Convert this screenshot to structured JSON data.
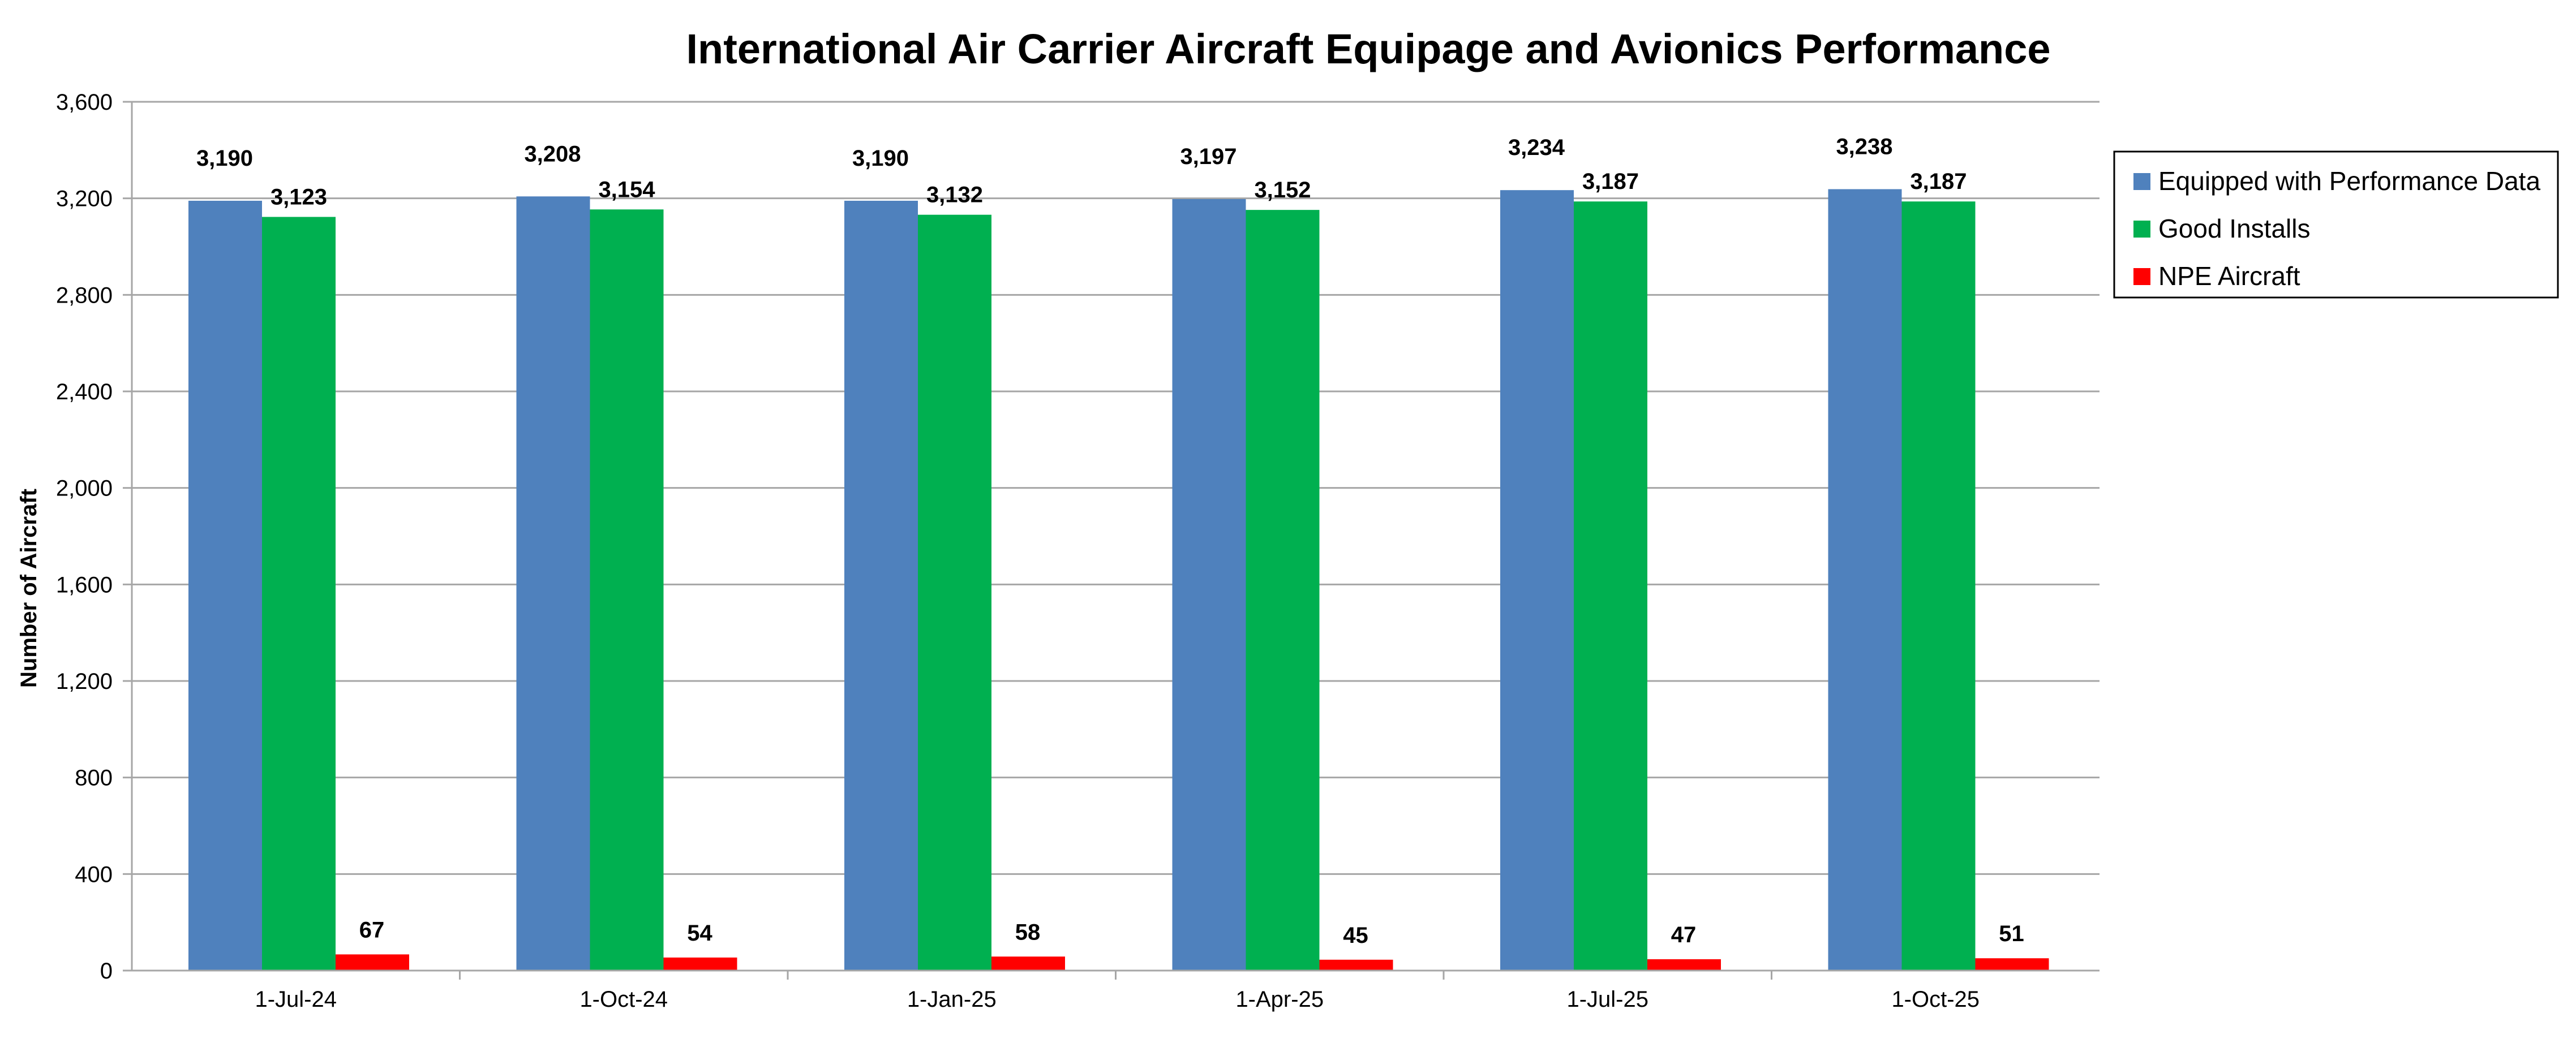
{
  "chart_data": {
    "type": "bar",
    "title": "International Air Carrier Aircraft Equipage and Avionics Performance",
    "ylabel": "Number of Aircraft",
    "xlabel": "",
    "ylim": [
      0,
      3600
    ],
    "yticks": [
      0,
      400,
      800,
      1200,
      1600,
      2000,
      2400,
      2800,
      3200,
      3600
    ],
    "ytick_labels": [
      "0",
      "400",
      "800",
      "1,200",
      "1,600",
      "2,000",
      "2,400",
      "2,800",
      "3,200",
      "3,600"
    ],
    "grid": "horizontal",
    "legend_position": "right",
    "categories": [
      "1-Jul-24",
      "1-Oct-24",
      "1-Jan-25",
      "1-Apr-25",
      "1-Jul-25",
      "1-Oct-25"
    ],
    "series": [
      {
        "name": "Equipped with Performance Data",
        "color": "#4F81BD",
        "values": [
          3190,
          3208,
          3190,
          3197,
          3234,
          3238
        ],
        "labels": [
          "3,190",
          "3,208",
          "3,190",
          "3,197",
          "3,234",
          "3,238"
        ]
      },
      {
        "name": "Good Installs",
        "color": "#00B050",
        "values": [
          3123,
          3154,
          3132,
          3152,
          3187,
          3187
        ],
        "labels": [
          "3,123",
          "3,154",
          "3,132",
          "3,152",
          "3,187",
          "3,187"
        ]
      },
      {
        "name": "NPE Aircraft",
        "color": "#FF0000",
        "values": [
          67,
          54,
          58,
          45,
          47,
          51
        ],
        "labels": [
          "67",
          "54",
          "58",
          "45",
          "47",
          "51"
        ]
      }
    ]
  }
}
